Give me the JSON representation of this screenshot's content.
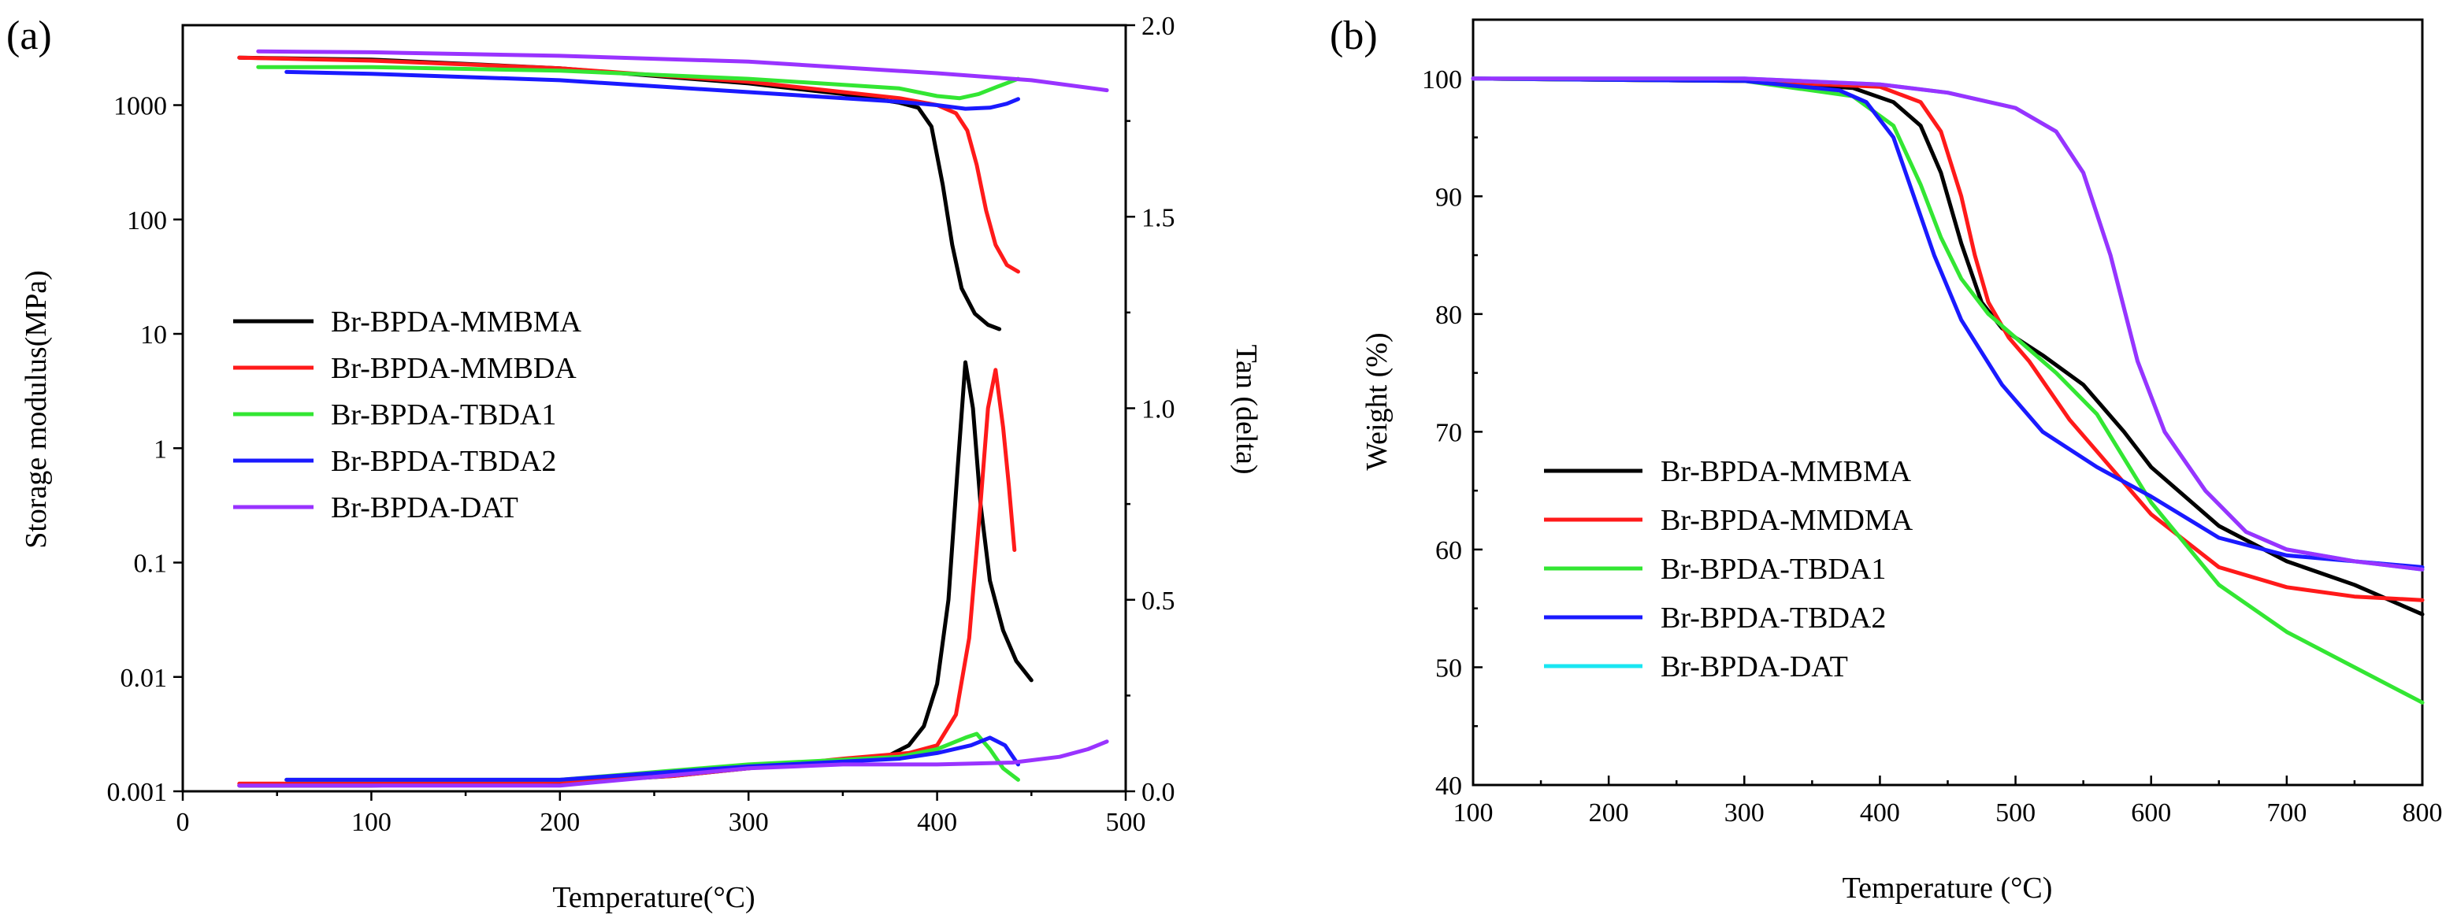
{
  "colors": {
    "black": "#000000",
    "red": "#ff1a1a",
    "green": "#33e633",
    "blue": "#1a1aff",
    "purple": "#9933ff",
    "cyan": "#1ae6f2"
  },
  "chart_data": [
    {
      "type": "line",
      "panel_label": "(a)",
      "xlabel": "Temperature(°C)",
      "ylabel": "Storage modulus(MPa)",
      "y2label": "Tan (delta)",
      "xlim": [
        0,
        500
      ],
      "ylim": [
        0.001,
        5000
      ],
      "yscale": "log",
      "y2lim": [
        0,
        2.0
      ],
      "xticks": [
        0,
        100,
        200,
        300,
        400,
        500
      ],
      "xtick_labels": [
        "0",
        "100",
        "200",
        "300",
        "400",
        "500"
      ],
      "yticks": [
        0.001,
        0.01,
        0.1,
        1,
        10,
        100,
        1000
      ],
      "ytick_labels": [
        "0.001",
        "0.01",
        "0.1",
        "1",
        "10",
        "100",
        "1000"
      ],
      "y2ticks": [
        0.0,
        0.5,
        1.0,
        1.5,
        2.0
      ],
      "y2tick_labels": [
        "0.0",
        "0.5",
        "1.0",
        "1.5",
        "2.0"
      ],
      "grid": false,
      "legend_position": "center-left",
      "legend": [
        "Br-BPDA-MMBMA",
        "Br-BPDA-MMBDA",
        "Br-BPDA-TBDA1",
        "Br-BPDA-TBDA2",
        "Br-BPDA-DAT"
      ],
      "series": [
        {
          "name": "Br-BPDA-MMBMA",
          "color_key": "black",
          "axis": "left",
          "x": [
            30,
            100,
            200,
            300,
            350,
            380,
            390,
            397,
            403,
            408,
            413,
            420,
            427,
            433
          ],
          "y": [
            2600,
            2500,
            2100,
            1550,
            1250,
            1050,
            950,
            650,
            200,
            60,
            25,
            15,
            12,
            11
          ]
        },
        {
          "name": "Br-BPDA-MMBDA",
          "color_key": "red",
          "axis": "left",
          "x": [
            30,
            100,
            200,
            300,
            380,
            400,
            410,
            416,
            421,
            426,
            431,
            437,
            443
          ],
          "y": [
            2600,
            2450,
            2100,
            1600,
            1150,
            1000,
            850,
            600,
            300,
            120,
            60,
            40,
            35
          ]
        },
        {
          "name": "Br-BPDA-TBDA1",
          "color_key": "green",
          "axis": "left",
          "x": [
            40,
            100,
            200,
            300,
            380,
            400,
            412,
            422,
            432,
            443
          ],
          "y": [
            2150,
            2150,
            2000,
            1700,
            1400,
            1200,
            1150,
            1250,
            1450,
            1700
          ]
        },
        {
          "name": "Br-BPDA-TBDA2",
          "color_key": "blue",
          "axis": "left",
          "x": [
            55,
            100,
            200,
            300,
            380,
            400,
            415,
            428,
            437,
            443
          ],
          "y": [
            1950,
            1880,
            1650,
            1300,
            1070,
            1000,
            930,
            950,
            1030,
            1130
          ]
        },
        {
          "name": "Br-BPDA-DAT",
          "color_key": "purple",
          "axis": "left",
          "x": [
            40,
            100,
            200,
            300,
            400,
            450,
            490
          ],
          "y": [
            2950,
            2900,
            2700,
            2400,
            1900,
            1650,
            1350
          ]
        },
        {
          "name": "Br-BPDA-MMBMA tan delta",
          "color_key": "black",
          "axis": "right",
          "x": [
            30,
            100,
            200,
            260,
            300,
            350,
            375,
            385,
            393,
            400,
            406,
            411,
            415,
            419,
            423,
            428,
            435,
            442,
            450
          ],
          "y": [
            0.015,
            0.015,
            0.022,
            0.04,
            0.06,
            0.08,
            0.095,
            0.12,
            0.17,
            0.28,
            0.5,
            0.85,
            1.12,
            1.0,
            0.75,
            0.55,
            0.42,
            0.34,
            0.29
          ]
        },
        {
          "name": "Br-BPDA-MMBDA tan delta",
          "color_key": "red",
          "axis": "right",
          "x": [
            30,
            100,
            200,
            260,
            300,
            350,
            385,
            400,
            410,
            417,
            423,
            427,
            431,
            435,
            438,
            441
          ],
          "y": [
            0.02,
            0.02,
            0.025,
            0.04,
            0.06,
            0.085,
            0.1,
            0.12,
            0.2,
            0.4,
            0.75,
            1.0,
            1.1,
            0.95,
            0.8,
            0.63
          ]
        },
        {
          "name": "Br-BPDA-TBDA1 tan delta",
          "color_key": "green",
          "axis": "right",
          "x": [
            55,
            200,
            300,
            380,
            400,
            415,
            421,
            428,
            435,
            443
          ],
          "y": [
            0.03,
            0.03,
            0.07,
            0.09,
            0.11,
            0.14,
            0.15,
            0.11,
            0.06,
            0.03
          ]
        },
        {
          "name": "Br-BPDA-TBDA2 tan delta",
          "color_key": "blue",
          "axis": "right",
          "x": [
            55,
            200,
            300,
            380,
            400,
            418,
            428,
            436,
            443
          ],
          "y": [
            0.03,
            0.03,
            0.065,
            0.085,
            0.1,
            0.12,
            0.14,
            0.12,
            0.07
          ]
        },
        {
          "name": "Br-BPDA-DAT tan delta",
          "color_key": "purple",
          "axis": "right",
          "x": [
            30,
            200,
            300,
            350,
            400,
            440,
            465,
            480,
            490
          ],
          "y": [
            0.015,
            0.015,
            0.06,
            0.07,
            0.07,
            0.075,
            0.09,
            0.11,
            0.13
          ]
        }
      ]
    },
    {
      "type": "line",
      "panel_label": "(b)",
      "xlabel": "Temperature (°C)",
      "ylabel": "Weight (%)",
      "xlim": [
        100,
        800
      ],
      "ylim": [
        40,
        105
      ],
      "xticks": [
        100,
        200,
        300,
        400,
        500,
        600,
        700,
        800
      ],
      "xtick_labels": [
        "100",
        "200",
        "300",
        "400",
        "500",
        "600",
        "700",
        "800"
      ],
      "yticks": [
        40,
        50,
        60,
        70,
        80,
        90,
        100
      ],
      "ytick_labels": [
        "40",
        "50",
        "60",
        "70",
        "80",
        "90",
        "100"
      ],
      "grid": false,
      "legend_position": "bottom-left",
      "legend": [
        "Br-BPDA-MMBMA",
        "Br-BPDA-MMDMA",
        "Br-BPDA-TBDA1",
        "Br-BPDA-TBDA2",
        "Br-BPDA-DAT"
      ],
      "series": [
        {
          "name": "Br-BPDA-MMBMA",
          "color_key": "black",
          "x": [
            100,
            300,
            380,
            410,
            430,
            445,
            460,
            475,
            490,
            500,
            520,
            550,
            580,
            600,
            650,
            700,
            750,
            800
          ],
          "y": [
            100,
            99.8,
            99.2,
            98,
            96,
            92,
            86,
            81,
            78.8,
            78,
            76.5,
            74,
            70,
            67,
            62,
            59,
            57,
            54.5
          ]
        },
        {
          "name": "Br-BPDA-MMDMA",
          "color_key": "red",
          "x": [
            100,
            300,
            400,
            430,
            445,
            460,
            470,
            480,
            495,
            510,
            540,
            570,
            600,
            650,
            700,
            750,
            800
          ],
          "y": [
            100,
            99.8,
            99.3,
            98,
            95.5,
            90,
            85,
            81,
            78,
            76,
            71,
            67,
            63,
            58.5,
            56.8,
            56,
            55.7
          ]
        },
        {
          "name": "Br-BPDA-TBDA1",
          "color_key": "green",
          "x": [
            100,
            300,
            380,
            410,
            430,
            445,
            460,
            480,
            500,
            530,
            560,
            600,
            650,
            700,
            750,
            800
          ],
          "y": [
            100,
            99.8,
            98.5,
            96,
            91,
            86.5,
            83,
            80,
            78,
            75,
            71.5,
            64,
            57,
            53,
            50,
            47
          ]
        },
        {
          "name": "Br-BPDA-TBDA2",
          "color_key": "blue",
          "x": [
            100,
            300,
            370,
            390,
            410,
            425,
            440,
            460,
            490,
            520,
            560,
            600,
            650,
            700,
            800
          ],
          "y": [
            100,
            99.8,
            99,
            98,
            95,
            90,
            85,
            79.5,
            74,
            70,
            67,
            64.5,
            61,
            59.5,
            58.5
          ]
        },
        {
          "name": "Br-BPDA-DAT",
          "color_key": "cyan",
          "x": [
            100,
            300,
            400,
            450,
            500,
            530,
            550,
            570,
            590,
            610,
            640,
            670,
            700,
            750,
            800
          ],
          "y": [
            100,
            100,
            99.5,
            98.8,
            97.5,
            95.5,
            92,
            85,
            76,
            70,
            65,
            61.5,
            60,
            59,
            58.3
          ]
        },
        {
          "name": "Br-BPDA-DAT",
          "color_key": "purple",
          "x": [
            100,
            300,
            400,
            450,
            500,
            530,
            550,
            570,
            590,
            610,
            640,
            670,
            700,
            750,
            800
          ],
          "y": [
            100,
            100,
            99.5,
            98.8,
            97.5,
            95.5,
            92,
            85,
            76,
            70,
            65,
            61.5,
            60,
            59,
            58.3
          ]
        }
      ],
      "legend_colors": [
        "black",
        "red",
        "green",
        "blue",
        "cyan"
      ]
    }
  ]
}
